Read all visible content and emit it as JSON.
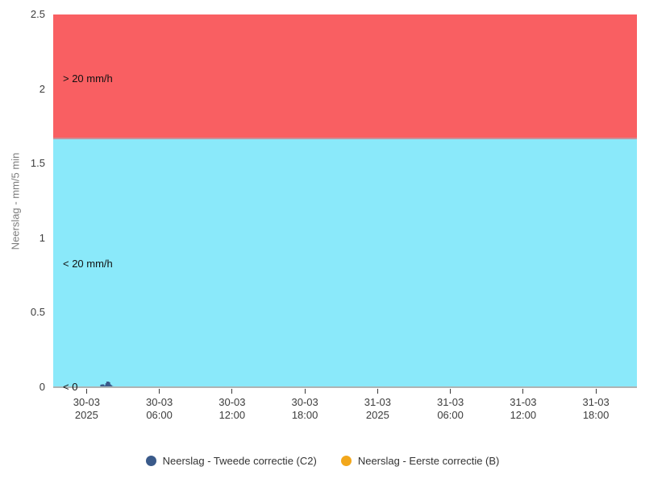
{
  "colors": {
    "background": "#ffffff",
    "axis_line": "#aeb4b4",
    "tick": "#3a3a3a",
    "tick_label": "#3c3c3c",
    "axis_title": "#7d7d7d",
    "band_label": "#111111",
    "band_divider": "#c7929b",
    "legend_text": "#333333"
  },
  "chart_data": {
    "type": "area",
    "title": "",
    "grid": false,
    "legend_position": "bottom-center",
    "y_axis": {
      "title": "Neerslag - mm/5 min",
      "range": [
        0,
        2.5
      ],
      "ticks": [
        "0",
        "0.5",
        "1",
        "1.5",
        "2",
        "2.5"
      ],
      "tick_values": [
        0,
        0.5,
        1,
        1.5,
        2,
        2.5
      ]
    },
    "x_axis": {
      "day_start": "30-03",
      "range_minutes": [
        -165,
        2723
      ],
      "ticks": [
        {
          "minutes": 0,
          "line1": "30-03",
          "line2": "2025"
        },
        {
          "minutes": 360,
          "line1": "30-03",
          "line2": "06:00"
        },
        {
          "minutes": 720,
          "line1": "30-03",
          "line2": "12:00"
        },
        {
          "minutes": 1080,
          "line1": "30-03",
          "line2": "18:00"
        },
        {
          "minutes": 1440,
          "line1": "31-03",
          "line2": "2025"
        },
        {
          "minutes": 1800,
          "line1": "31-03",
          "line2": "06:00"
        },
        {
          "minutes": 2160,
          "line1": "31-03",
          "line2": "12:00"
        },
        {
          "minutes": 2520,
          "line1": "31-03",
          "line2": "18:00"
        }
      ]
    },
    "bands": [
      {
        "id": "gt20",
        "label": "> 20 mm/h",
        "from": 1.6667,
        "to": 2.5,
        "color": "#f95f62",
        "label_at": 2.07
      },
      {
        "id": "lt20",
        "label": "< 20 mm/h",
        "from": 0,
        "to": 1.6667,
        "color": "#8ae9fa",
        "label_at": 0.825
      },
      {
        "id": "lt0",
        "label": "< 0",
        "from": null,
        "to": 0,
        "color": null,
        "label_at": 0.0
      }
    ],
    "series": [
      {
        "name": "Neerslag - Tweede correctie (C2)",
        "color": "#3a5a8a",
        "points": [
          {
            "day": "30-03",
            "time": "01:05",
            "value": 0
          },
          {
            "day": "30-03",
            "time": "01:10",
            "value": 0.014
          },
          {
            "day": "30-03",
            "time": "01:15",
            "value": 0.016
          },
          {
            "day": "30-03",
            "time": "01:20",
            "value": 0.016
          },
          {
            "day": "30-03",
            "time": "01:25",
            "value": 0.006
          },
          {
            "day": "30-03",
            "time": "01:30",
            "value": 0.01
          },
          {
            "day": "30-03",
            "time": "01:35",
            "value": 0.024
          },
          {
            "day": "30-03",
            "time": "01:40",
            "value": 0.035
          },
          {
            "day": "30-03",
            "time": "01:45",
            "value": 0.035
          },
          {
            "day": "30-03",
            "time": "01:50",
            "value": 0.03
          },
          {
            "day": "30-03",
            "time": "01:55",
            "value": 0.016
          },
          {
            "day": "30-03",
            "time": "02:00",
            "value": 0.01
          },
          {
            "day": "30-03",
            "time": "02:05",
            "value": 0.004
          },
          {
            "day": "30-03",
            "time": "02:10",
            "value": 0
          }
        ]
      },
      {
        "name": "Neerslag - Eerste correctie (B)",
        "color": "#f2a71b",
        "points": []
      }
    ]
  }
}
